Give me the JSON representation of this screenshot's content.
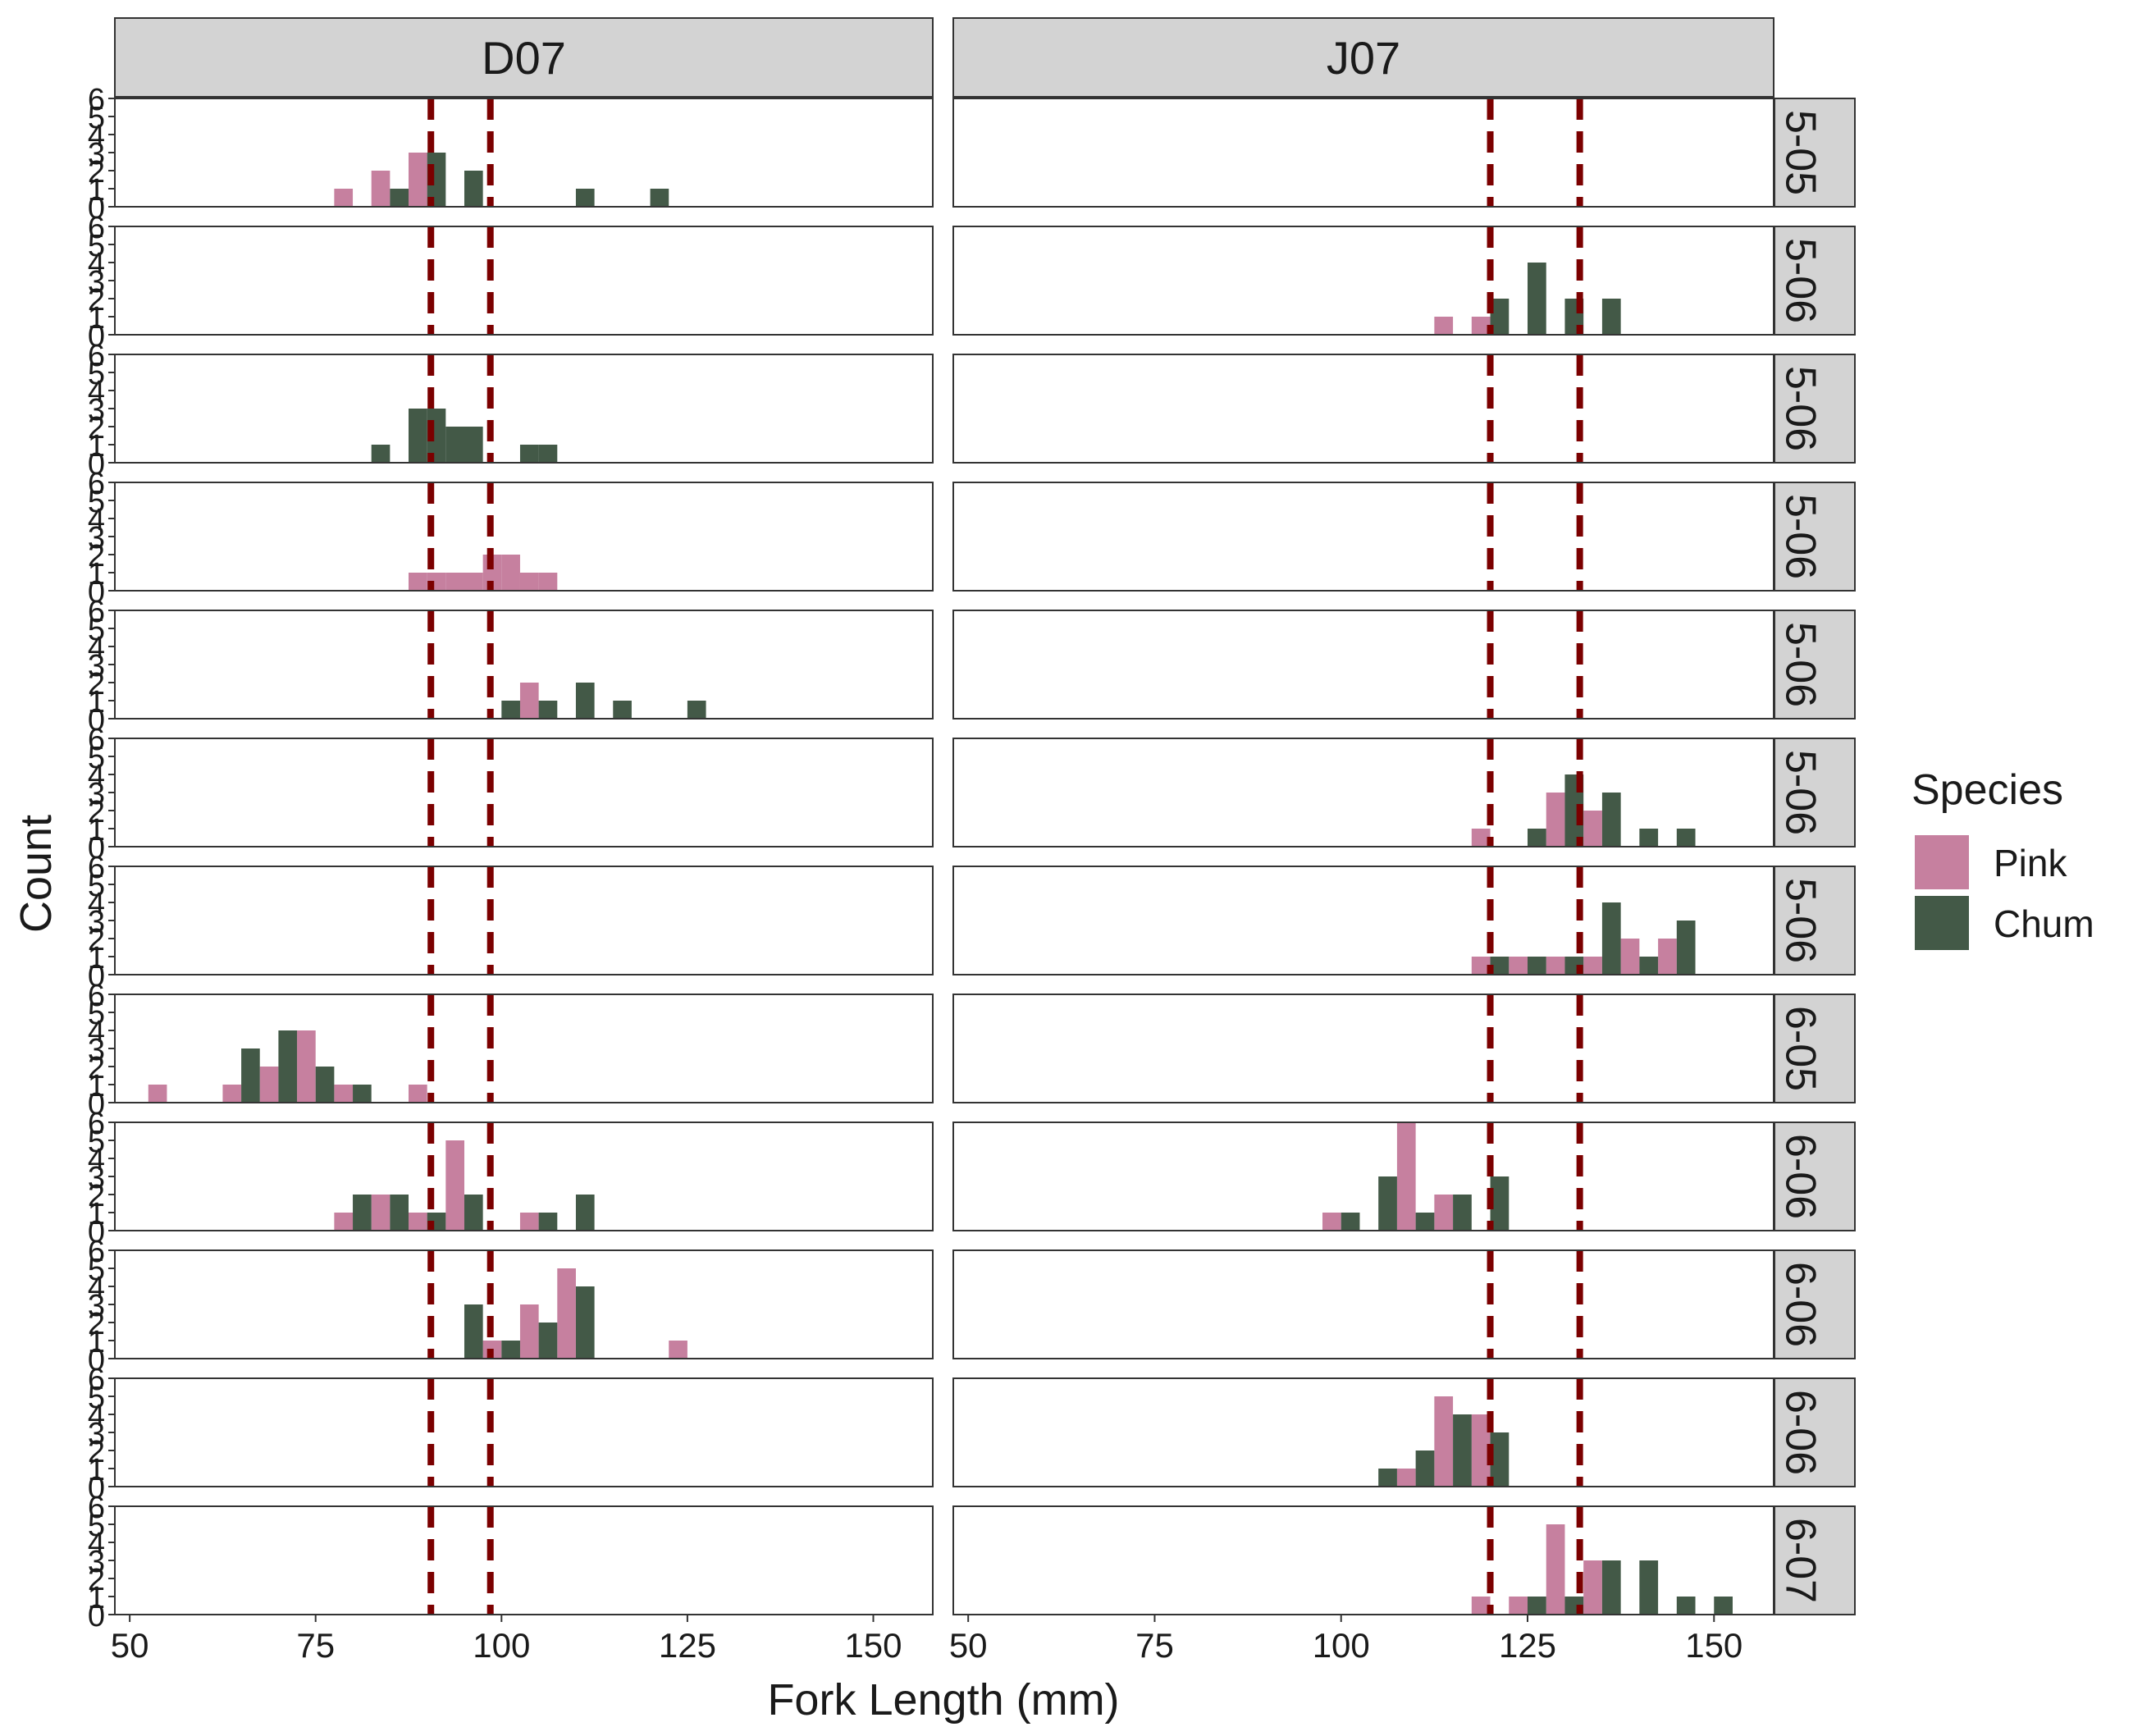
{
  "chart_data": {
    "type": "bar",
    "xlabel": "Fork Length (mm)",
    "ylabel": "Count",
    "legend": {
      "title": "Species",
      "placement": "right",
      "entries": [
        {
          "name": "Pink",
          "color": "#c6809f"
        },
        {
          "name": "Chum",
          "color": "#435947"
        }
      ]
    },
    "xlim": [
      48,
      158
    ],
    "x_ticks": [
      50,
      75,
      100,
      125,
      150
    ],
    "ylim": [
      0,
      6
    ],
    "y_ticks": [
      0,
      1,
      2,
      3,
      4,
      5,
      6
    ],
    "bin_width": 2.5,
    "columns": [
      "D07",
      "J07"
    ],
    "rows": [
      "5-05",
      "5-06",
      "5-06",
      "5-06",
      "5-06",
      "5-06",
      "5-06",
      "6-05",
      "6-06",
      "6-06",
      "6-06",
      "6-07"
    ],
    "reference_lines": {
      "color": "#7b0000",
      "style": "dashed",
      "D07": [
        90.5,
        98.5
      ],
      "J07": [
        120,
        132
      ]
    },
    "panels": [
      {
        "column": "D07",
        "row": 0,
        "pink": [
          [
            78.75,
            1
          ],
          [
            83.75,
            2
          ],
          [
            88.75,
            3
          ]
        ],
        "chum": [
          [
            86.25,
            1
          ],
          [
            91.25,
            3
          ],
          [
            96.25,
            2
          ],
          [
            111.25,
            1
          ],
          [
            121.25,
            1
          ]
        ]
      },
      {
        "column": "J07",
        "row": 0,
        "pink": [],
        "chum": []
      },
      {
        "column": "D07",
        "row": 1,
        "pink": [],
        "chum": []
      },
      {
        "column": "J07",
        "row": 1,
        "pink": [
          [
            113.75,
            1
          ],
          [
            118.75,
            1
          ]
        ],
        "chum": [
          [
            121.25,
            2
          ],
          [
            126.25,
            4
          ],
          [
            131.25,
            2
          ],
          [
            136.25,
            2
          ]
        ]
      },
      {
        "column": "D07",
        "row": 2,
        "pink": [],
        "chum": [
          [
            83.75,
            1
          ],
          [
            88.75,
            3
          ],
          [
            91.25,
            3
          ],
          [
            93.75,
            2
          ],
          [
            96.25,
            2
          ],
          [
            103.75,
            1
          ],
          [
            106.25,
            1
          ]
        ]
      },
      {
        "column": "J07",
        "row": 2,
        "pink": [],
        "chum": []
      },
      {
        "column": "D07",
        "row": 3,
        "pink": [
          [
            88.75,
            1
          ],
          [
            91.25,
            1
          ],
          [
            93.75,
            1
          ],
          [
            96.25,
            1
          ],
          [
            98.75,
            2
          ],
          [
            101.25,
            2
          ],
          [
            103.75,
            1
          ],
          [
            106.25,
            1
          ]
        ],
        "chum": []
      },
      {
        "column": "J07",
        "row": 3,
        "pink": [],
        "chum": []
      },
      {
        "column": "D07",
        "row": 4,
        "pink": [
          [
            103.75,
            2
          ]
        ],
        "chum": [
          [
            101.25,
            1
          ],
          [
            106.25,
            1
          ],
          [
            111.25,
            2
          ],
          [
            116.25,
            1
          ],
          [
            126.25,
            1
          ]
        ]
      },
      {
        "column": "J07",
        "row": 4,
        "pink": [],
        "chum": []
      },
      {
        "column": "D07",
        "row": 5,
        "pink": [],
        "chum": []
      },
      {
        "column": "J07",
        "row": 5,
        "pink": [
          [
            118.75,
            1
          ],
          [
            128.75,
            3
          ],
          [
            133.75,
            2
          ]
        ],
        "chum": [
          [
            126.25,
            1
          ],
          [
            131.25,
            4
          ],
          [
            136.25,
            3
          ],
          [
            141.25,
            1
          ],
          [
            146.25,
            1
          ]
        ]
      },
      {
        "column": "D07",
        "row": 6,
        "pink": [],
        "chum": []
      },
      {
        "column": "J07",
        "row": 6,
        "pink": [
          [
            118.75,
            1
          ],
          [
            123.75,
            1
          ],
          [
            128.75,
            1
          ],
          [
            133.75,
            1
          ],
          [
            138.75,
            2
          ],
          [
            143.75,
            2
          ]
        ],
        "chum": [
          [
            121.25,
            1
          ],
          [
            126.25,
            1
          ],
          [
            131.25,
            1
          ],
          [
            136.25,
            4
          ],
          [
            141.25,
            1
          ],
          [
            146.25,
            3
          ]
        ]
      },
      {
        "column": "D07",
        "row": 7,
        "pink": [
          [
            53.75,
            1
          ],
          [
            63.75,
            1
          ],
          [
            68.75,
            2
          ],
          [
            73.75,
            4
          ],
          [
            78.75,
            1
          ],
          [
            88.75,
            1
          ]
        ],
        "chum": [
          [
            66.25,
            3
          ],
          [
            71.25,
            4
          ],
          [
            76.25,
            2
          ],
          [
            81.25,
            1
          ]
        ]
      },
      {
        "column": "J07",
        "row": 7,
        "pink": [],
        "chum": []
      },
      {
        "column": "D07",
        "row": 8,
        "pink": [
          [
            78.75,
            1
          ],
          [
            83.75,
            2
          ],
          [
            88.75,
            1
          ],
          [
            93.75,
            5
          ],
          [
            103.75,
            1
          ]
        ],
        "chum": [
          [
            81.25,
            2
          ],
          [
            86.25,
            2
          ],
          [
            91.25,
            1
          ],
          [
            96.25,
            2
          ],
          [
            106.25,
            1
          ],
          [
            111.25,
            2
          ]
        ]
      },
      {
        "column": "J07",
        "row": 8,
        "pink": [
          [
            98.75,
            1
          ],
          [
            108.75,
            6
          ],
          [
            113.75,
            2
          ]
        ],
        "chum": [
          [
            101.25,
            1
          ],
          [
            106.25,
            3
          ],
          [
            111.25,
            1
          ],
          [
            116.25,
            2
          ],
          [
            121.25,
            3
          ]
        ]
      },
      {
        "column": "D07",
        "row": 9,
        "pink": [
          [
            98.75,
            1
          ],
          [
            103.75,
            3
          ],
          [
            108.75,
            5
          ],
          [
            123.75,
            1
          ]
        ],
        "chum": [
          [
            96.25,
            3
          ],
          [
            101.25,
            1
          ],
          [
            106.25,
            2
          ],
          [
            111.25,
            4
          ]
        ]
      },
      {
        "column": "J07",
        "row": 9,
        "pink": [],
        "chum": []
      },
      {
        "column": "D07",
        "row": 10,
        "pink": [],
        "chum": []
      },
      {
        "column": "J07",
        "row": 10,
        "pink": [
          [
            108.75,
            1
          ],
          [
            113.75,
            5
          ],
          [
            118.75,
            4
          ]
        ],
        "chum": [
          [
            106.25,
            1
          ],
          [
            111.25,
            2
          ],
          [
            116.25,
            4
          ],
          [
            121.25,
            3
          ]
        ]
      },
      {
        "column": "D07",
        "row": 11,
        "pink": [],
        "chum": []
      },
      {
        "column": "J07",
        "row": 11,
        "pink": [
          [
            118.75,
            1
          ],
          [
            123.75,
            1
          ],
          [
            128.75,
            5
          ],
          [
            133.75,
            3
          ]
        ],
        "chum": [
          [
            126.25,
            1
          ],
          [
            131.25,
            1
          ],
          [
            136.25,
            3
          ],
          [
            141.25,
            3
          ],
          [
            146.25,
            1
          ],
          [
            151.25,
            1
          ]
        ]
      }
    ]
  }
}
